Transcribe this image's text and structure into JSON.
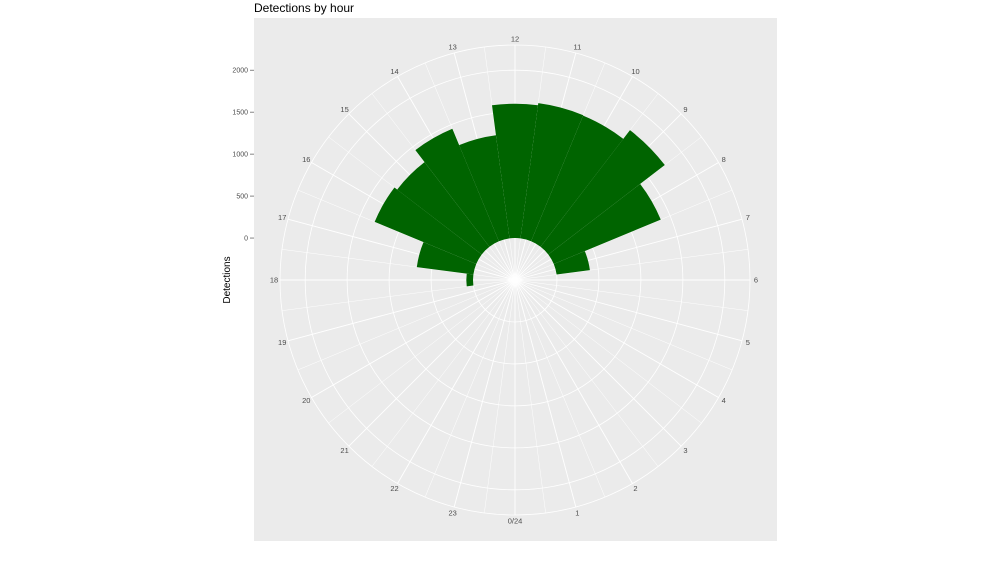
{
  "chart_data": {
    "type": "bar",
    "coord": "polar",
    "title": "Detections by hour",
    "ylabel": "Detections",
    "xlabel": "",
    "ylim": [
      -500,
      2300
    ],
    "y_ticks": [
      0,
      500,
      1000,
      1500,
      2000
    ],
    "x_tick_labels": [
      "0/24",
      "1",
      "2",
      "3",
      "4",
      "5",
      "6",
      "7",
      "8",
      "9",
      "10",
      "11",
      "12",
      "13",
      "14",
      "15",
      "16",
      "17",
      "18",
      "19",
      "20",
      "21",
      "22",
      "23"
    ],
    "categories": [
      0,
      1,
      2,
      3,
      4,
      5,
      6,
      7,
      8,
      9,
      10,
      11,
      12,
      13,
      14,
      15,
      16,
      17,
      18,
      19,
      20,
      21,
      22,
      23
    ],
    "values": [
      0,
      0,
      0,
      0,
      0,
      0,
      0,
      400,
      1380,
      1750,
      1620,
      1625,
      1600,
      1240,
      1450,
      1270,
      1310,
      680,
      80,
      0,
      0,
      0,
      0,
      0
    ],
    "bar_color": "#006400",
    "panel_color": "#ebebeb",
    "grid_color": "#ffffff",
    "grid": true,
    "legend": "none"
  }
}
